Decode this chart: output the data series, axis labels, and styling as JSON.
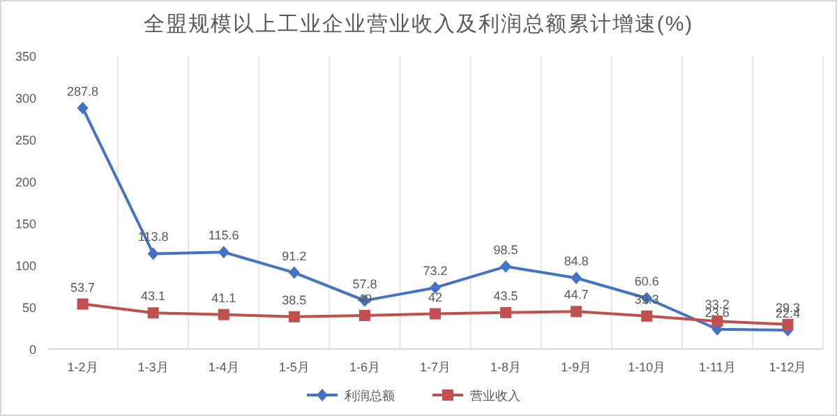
{
  "chart_data": {
    "type": "line",
    "title": "全盟规模以上工业企业营业收入及利润总额累计增速(%)",
    "categories": [
      "1-2月",
      "1-3月",
      "1-4月",
      "1-5月",
      "1-6月",
      "1-7月",
      "1-8月",
      "1-9月",
      "1-10月",
      "1-11月",
      "1-12月"
    ],
    "series": [
      {
        "name": "利润总额",
        "color": "#4472c4",
        "marker": "diamond",
        "values": [
          287.8,
          113.8,
          115.6,
          91.2,
          57.8,
          73.2,
          98.5,
          84.8,
          60.6,
          23.6,
          22.4
        ]
      },
      {
        "name": "营业收入",
        "color": "#c0504d",
        "marker": "square",
        "values": [
          53.7,
          43.1,
          41.1,
          38.5,
          40,
          42,
          43.5,
          44.7,
          39.3,
          33.2,
          29.3
        ]
      }
    ],
    "ylim": [
      0,
      350
    ],
    "yticks": [
      0,
      50,
      100,
      150,
      200,
      250,
      300,
      350
    ],
    "grid": "x",
    "legend": "bottom",
    "data_labels": true,
    "line_style": "solid"
  }
}
